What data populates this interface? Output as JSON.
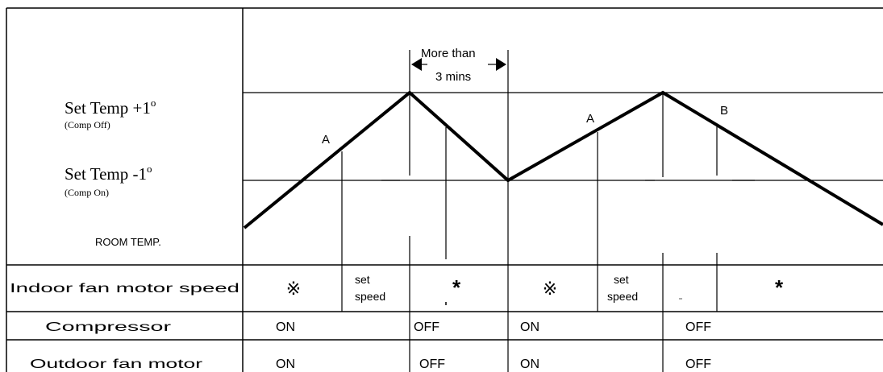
{
  "left_labels": {
    "set_temp_high": "Set Temp +1",
    "set_temp_high_degree": "o",
    "set_temp_high_note": "(Comp Off)",
    "set_temp_low": "Set Temp -1",
    "set_temp_low_degree": "o",
    "set_temp_low_note": "(Comp On)",
    "room_temp": "ROOM TEMP."
  },
  "annotations": {
    "more_than_line1": "More than",
    "more_than_line2": "3 mins",
    "point_a1": "A",
    "point_a2": "A",
    "point_b": "B"
  },
  "rows": {
    "indoor_fan": {
      "label": "Indoor fan motor speed",
      "cells": [
        "※",
        "set",
        "speed",
        "*",
        "※",
        "set",
        "speed",
        "*"
      ]
    },
    "compressor": {
      "label": "Compressor",
      "cells": [
        "ON",
        "OFF",
        "ON",
        "OFF"
      ]
    },
    "outdoor_fan": {
      "label": "Outdoor fan motor",
      "cells": [
        "ON",
        "OFF",
        "ON",
        "OFF"
      ]
    }
  }
}
